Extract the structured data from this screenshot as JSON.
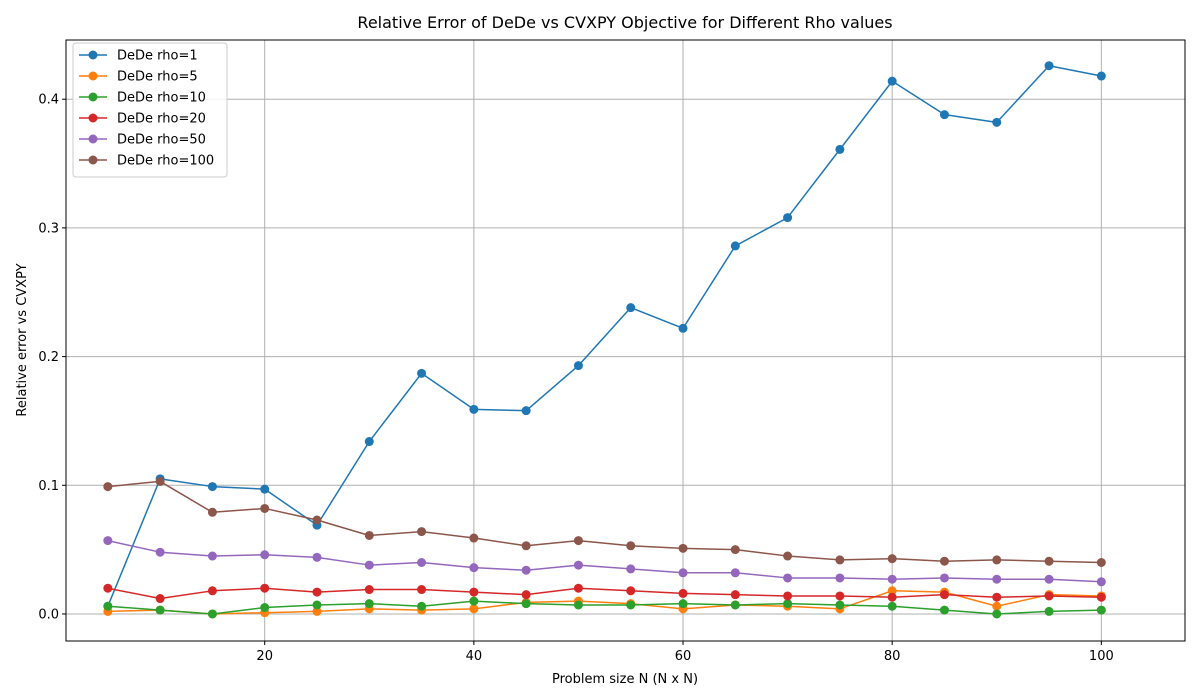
{
  "chart_data": {
    "type": "line",
    "title": "Relative Error of DeDe vs CVXPY Objective for Different Rho values",
    "xlabel": "Problem size N (N x N)",
    "ylabel": "Relative error vs CVXPY",
    "xlim": [
      1,
      108
    ],
    "ylim": [
      -0.021,
      0.446
    ],
    "xticks": [
      20,
      40,
      60,
      80,
      100
    ],
    "yticks": [
      0.0,
      0.1,
      0.2,
      0.3,
      0.4
    ],
    "xtick_labels": [
      "20",
      "40",
      "60",
      "80",
      "100"
    ],
    "ytick_labels": [
      "0.0",
      "0.1",
      "0.2",
      "0.3",
      "0.4"
    ],
    "grid": true,
    "legend_position": "top-left",
    "x": [
      5,
      10,
      15,
      20,
      25,
      30,
      35,
      40,
      45,
      50,
      55,
      60,
      65,
      70,
      75,
      80,
      85,
      90,
      95,
      100
    ],
    "series": [
      {
        "name": "DeDe rho=1",
        "color": "#1f77b4",
        "values": [
          0.006,
          0.105,
          0.099,
          0.097,
          0.069,
          0.134,
          0.187,
          0.159,
          0.158,
          0.193,
          0.238,
          0.222,
          0.286,
          0.308,
          0.361,
          0.414,
          0.388,
          0.382,
          0.426,
          0.418
        ]
      },
      {
        "name": "DeDe rho=5",
        "color": "#ff7f0e",
        "values": [
          0.002,
          0.003,
          0.0,
          0.001,
          0.002,
          0.004,
          0.003,
          0.004,
          0.009,
          0.01,
          0.008,
          0.004,
          0.007,
          0.006,
          0.004,
          0.018,
          0.017,
          0.006,
          0.015,
          0.014
        ]
      },
      {
        "name": "DeDe rho=10",
        "color": "#2ca02c",
        "values": [
          0.006,
          0.003,
          0.0,
          0.005,
          0.007,
          0.008,
          0.006,
          0.01,
          0.008,
          0.007,
          0.007,
          0.008,
          0.007,
          0.008,
          0.007,
          0.006,
          0.003,
          0.0,
          0.002,
          0.003
        ]
      },
      {
        "name": "DeDe rho=20",
        "color": "#d62728",
        "values": [
          0.02,
          0.012,
          0.018,
          0.02,
          0.017,
          0.019,
          0.019,
          0.017,
          0.015,
          0.02,
          0.018,
          0.016,
          0.015,
          0.014,
          0.014,
          0.013,
          0.015,
          0.013,
          0.014,
          0.013
        ]
      },
      {
        "name": "DeDe rho=50",
        "color": "#9467bd",
        "values": [
          0.057,
          0.048,
          0.045,
          0.046,
          0.044,
          0.038,
          0.04,
          0.036,
          0.034,
          0.038,
          0.035,
          0.032,
          0.032,
          0.028,
          0.028,
          0.027,
          0.028,
          0.027,
          0.027,
          0.025
        ]
      },
      {
        "name": "DeDe rho=100",
        "color": "#8c564b",
        "values": [
          0.099,
          0.103,
          0.079,
          0.082,
          0.073,
          0.061,
          0.064,
          0.059,
          0.053,
          0.057,
          0.053,
          0.051,
          0.05,
          0.045,
          0.042,
          0.043,
          0.041,
          0.042,
          0.041,
          0.04
        ]
      }
    ]
  }
}
